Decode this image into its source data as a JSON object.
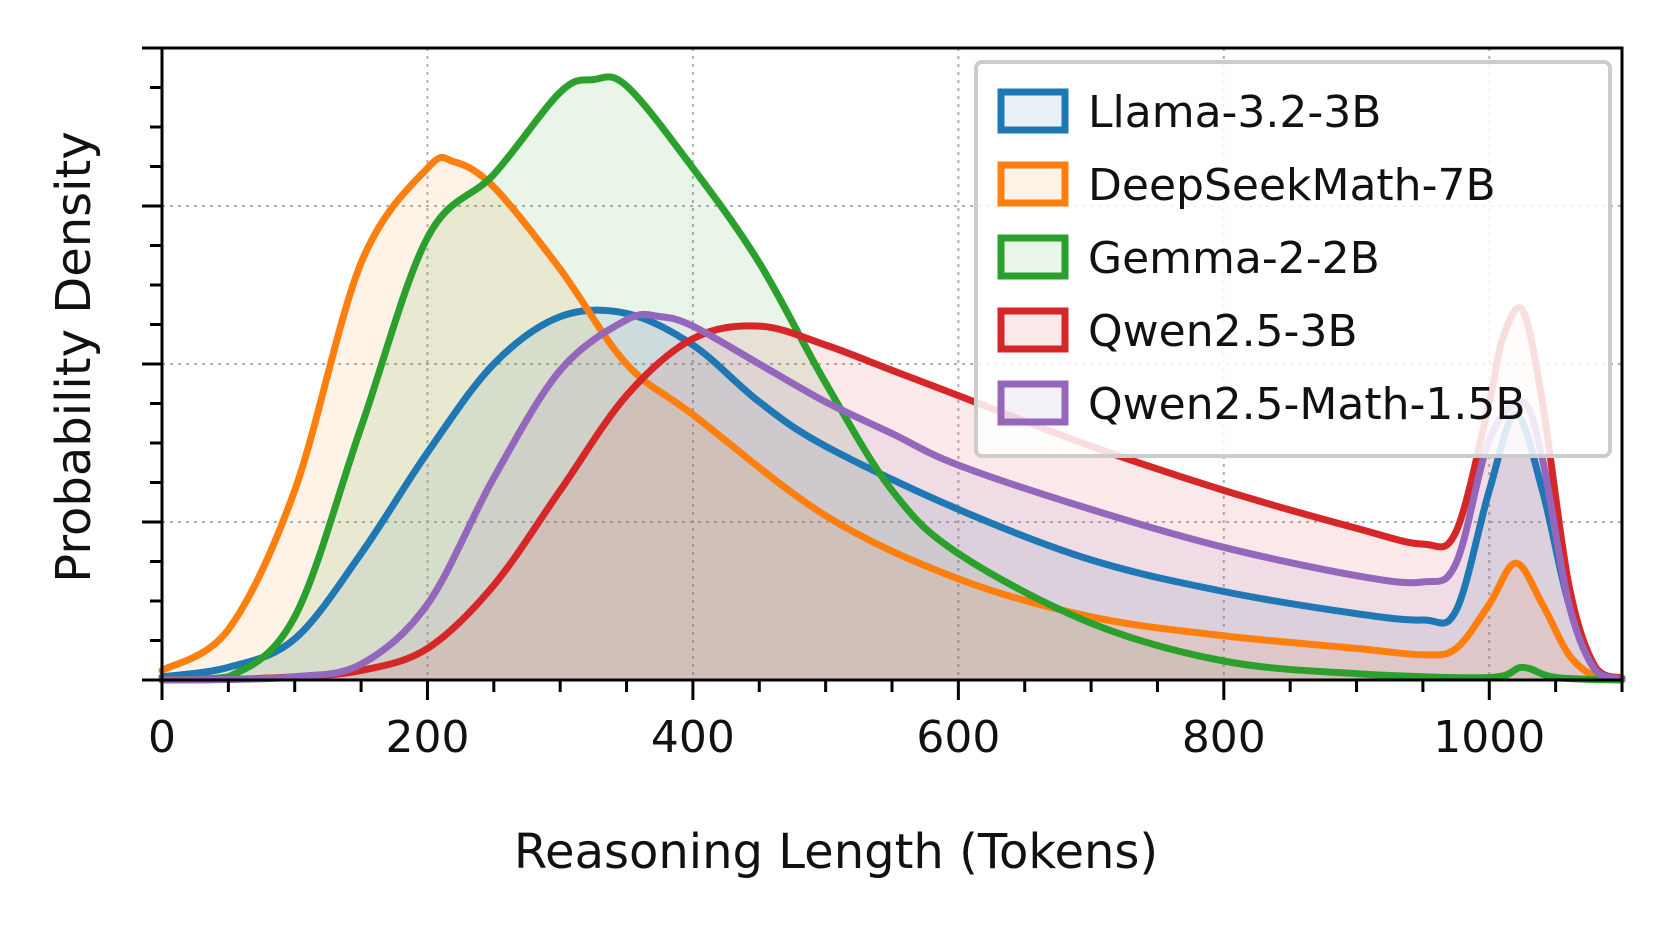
{
  "chart_data": {
    "type": "area",
    "title": "",
    "xlabel": "Reasoning Length (Tokens)",
    "ylabel": "Probability Density",
    "xlim": [
      0,
      1100
    ],
    "ylim": [
      0,
      1.0
    ],
    "x_ticks": [
      0,
      200,
      400,
      600,
      800,
      1000
    ],
    "grid": true,
    "y_tick_labels_shown": false,
    "legend_position": "top-right",
    "series": [
      {
        "name": "Llama-3.2-3B",
        "color": "#1f77b4",
        "x": [
          0,
          50,
          100,
          150,
          200,
          250,
          300,
          350,
          400,
          450,
          500,
          600,
          700,
          800,
          900,
          950,
          975,
          1000,
          1020,
          1040,
          1060,
          1080,
          1100
        ],
        "y": [
          0.005,
          0.02,
          0.065,
          0.2,
          0.36,
          0.5,
          0.575,
          0.58,
          0.53,
          0.44,
          0.37,
          0.27,
          0.19,
          0.14,
          0.105,
          0.095,
          0.11,
          0.3,
          0.42,
          0.3,
          0.12,
          0.02,
          0.003
        ]
      },
      {
        "name": "DeepSeekMath-7B",
        "color": "#ff7f0e",
        "x": [
          0,
          50,
          100,
          150,
          200,
          220,
          250,
          300,
          350,
          400,
          500,
          600,
          700,
          800,
          900,
          950,
          975,
          1000,
          1020,
          1040,
          1060,
          1080,
          1100
        ],
        "y": [
          0.015,
          0.08,
          0.3,
          0.66,
          0.81,
          0.82,
          0.78,
          0.65,
          0.5,
          0.42,
          0.26,
          0.16,
          0.1,
          0.07,
          0.05,
          0.04,
          0.05,
          0.12,
          0.185,
          0.12,
          0.04,
          0.005,
          0.001
        ]
      },
      {
        "name": "Gemma-2-2B",
        "color": "#2ca02c",
        "x": [
          0,
          50,
          100,
          150,
          200,
          250,
          300,
          325,
          350,
          400,
          450,
          500,
          550,
          600,
          700,
          800,
          900,
          1000,
          1025,
          1050,
          1100
        ],
        "y": [
          0.0,
          0.005,
          0.1,
          0.4,
          0.7,
          0.8,
          0.93,
          0.95,
          0.94,
          0.81,
          0.66,
          0.47,
          0.3,
          0.2,
          0.09,
          0.03,
          0.01,
          0.004,
          0.02,
          0.004,
          0.0
        ]
      },
      {
        "name": "Qwen2.5-3B",
        "color": "#d62728",
        "x": [
          0,
          50,
          100,
          150,
          200,
          250,
          300,
          350,
          400,
          450,
          500,
          550,
          600,
          700,
          800,
          900,
          950,
          975,
          1000,
          1010,
          1025,
          1040,
          1060,
          1080,
          1100
        ],
        "y": [
          0.0,
          0.001,
          0.005,
          0.015,
          0.05,
          0.15,
          0.3,
          0.45,
          0.54,
          0.56,
          0.53,
          0.49,
          0.45,
          0.37,
          0.3,
          0.24,
          0.215,
          0.235,
          0.44,
          0.54,
          0.585,
          0.44,
          0.15,
          0.02,
          0.003
        ]
      },
      {
        "name": "Qwen2.5-Math-1.5B",
        "color": "#9467bd",
        "x": [
          0,
          50,
          100,
          150,
          200,
          250,
          300,
          350,
          375,
          400,
          450,
          500,
          550,
          600,
          700,
          800,
          900,
          950,
          975,
          1000,
          1025,
          1040,
          1060,
          1080,
          1100
        ],
        "y": [
          0.0,
          0.001,
          0.005,
          0.025,
          0.12,
          0.32,
          0.49,
          0.57,
          0.575,
          0.56,
          0.5,
          0.44,
          0.39,
          0.34,
          0.27,
          0.21,
          0.165,
          0.155,
          0.185,
          0.38,
          0.44,
          0.35,
          0.12,
          0.015,
          0.002
        ]
      }
    ]
  }
}
